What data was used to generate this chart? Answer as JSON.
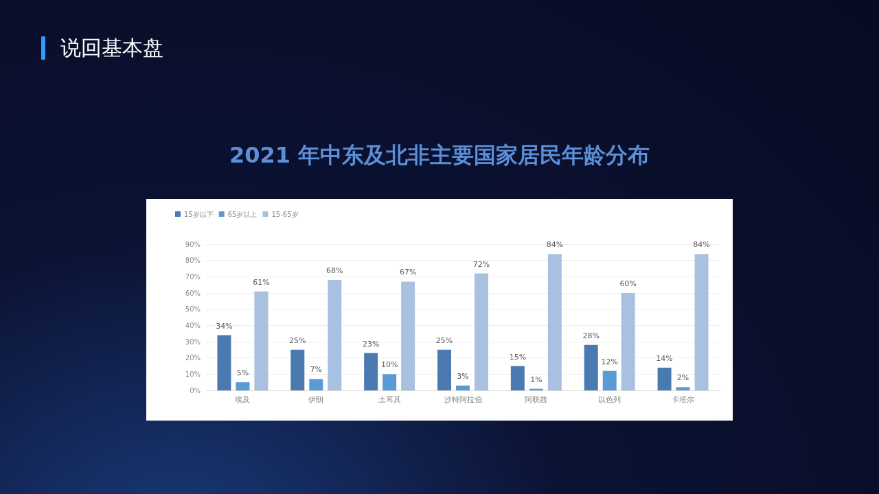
{
  "chart_data": {
    "type": "bar",
    "title": "2021 年中东及北非主要国家居民年龄分布",
    "annotations": [
      "说回基本盘"
    ],
    "categories": [
      "埃及",
      "伊朗",
      "土耳其",
      "沙特阿拉伯",
      "阿联酋",
      "以色列",
      "卡塔尔"
    ],
    "series": [
      {
        "name": "15岁以下",
        "color": "#4a7ab0",
        "values": [
          34,
          25,
          23,
          25,
          15,
          28,
          14
        ],
        "value_labels": [
          "34%",
          "25%",
          "23%",
          "25%",
          "15%",
          "28%",
          "14%"
        ]
      },
      {
        "name": "65岁以上",
        "color": "#5b9bd5",
        "values": [
          5,
          7,
          10,
          3,
          1,
          12,
          2
        ],
        "value_labels": [
          "5%",
          "7%",
          "10%",
          "3%",
          "1%",
          "12%",
          "2%"
        ]
      },
      {
        "name": "15-65岁",
        "color": "#a9c1e0",
        "values": [
          61,
          68,
          67,
          72,
          84,
          60,
          84
        ],
        "value_labels": [
          "61%",
          "68%",
          "67%",
          "72%",
          "84%",
          "60%",
          "84%"
        ]
      }
    ],
    "ylim": [
      0,
      90
    ],
    "yticks": [
      {
        "value": 0,
        "label": "0%"
      },
      {
        "value": 10,
        "label": "10%"
      },
      {
        "value": 20,
        "label": "20%"
      },
      {
        "value": 30,
        "label": "30%"
      },
      {
        "value": 40,
        "label": "40%"
      },
      {
        "value": 50,
        "label": "50%"
      },
      {
        "value": 60,
        "label": "60%"
      },
      {
        "value": 70,
        "label": "70%"
      },
      {
        "value": 80,
        "label": "80%"
      },
      {
        "value": 90,
        "label": "90%"
      }
    ],
    "grid": "y",
    "legend": "top left"
  }
}
